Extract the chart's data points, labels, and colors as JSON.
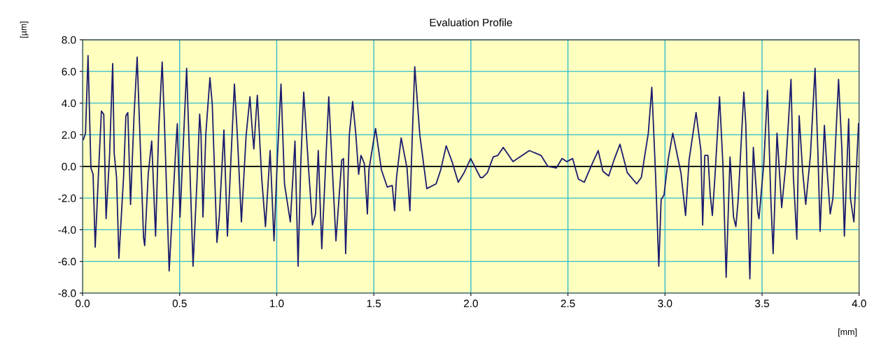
{
  "chart_data": {
    "type": "line",
    "title": "Evaluation Profile",
    "xlabel": "[mm]",
    "ylabel": "[µm]",
    "xlim": [
      0,
      4
    ],
    "ylim": [
      -8,
      8
    ],
    "xticks": [
      {
        "value": 0,
        "label": "0.0"
      },
      {
        "value": 0.5,
        "label": "0.5"
      },
      {
        "value": 1,
        "label": "1.0"
      },
      {
        "value": 1.5,
        "label": "1.5"
      },
      {
        "value": 2,
        "label": "2.0"
      },
      {
        "value": 2.5,
        "label": "2.5"
      },
      {
        "value": 3,
        "label": "3.0"
      },
      {
        "value": 3.5,
        "label": "3.5"
      },
      {
        "value": 4,
        "label": "4.0"
      }
    ],
    "yticks": [
      {
        "value": -8,
        "label": "-8.0"
      },
      {
        "value": -6,
        "label": "-6.0"
      },
      {
        "value": -4,
        "label": "-4.0"
      },
      {
        "value": -2,
        "label": "-2.0"
      },
      {
        "value": 0,
        "label": "0.0"
      },
      {
        "value": 2,
        "label": "2.0"
      },
      {
        "value": 4,
        "label": "4.0"
      },
      {
        "value": 6,
        "label": "6.0"
      },
      {
        "value": 8,
        "label": "8.0"
      }
    ],
    "grid": true,
    "marker": "none",
    "line_style": "solid",
    "ref_lines": [
      {
        "axis": "y",
        "value": 0,
        "label": null,
        "color": "#000000"
      }
    ],
    "x": [
      0.004,
      0.015,
      0.028,
      0.043,
      0.054,
      0.065,
      0.085,
      0.097,
      0.109,
      0.121,
      0.139,
      0.155,
      0.163,
      0.175,
      0.187,
      0.211,
      0.223,
      0.233,
      0.247,
      0.265,
      0.281,
      0.295,
      0.314,
      0.32,
      0.338,
      0.356,
      0.376,
      0.392,
      0.41,
      0.422,
      0.446,
      0.482,
      0.488,
      0.502,
      0.536,
      0.569,
      0.59,
      0.603,
      0.61,
      0.62,
      0.635,
      0.656,
      0.668,
      0.692,
      0.704,
      0.728,
      0.746,
      0.764,
      0.782,
      0.797,
      0.818,
      0.842,
      0.862,
      0.872,
      0.882,
      0.9,
      0.923,
      0.942,
      0.966,
      0.986,
      1.004,
      1.022,
      1.04,
      1.07,
      1.094,
      1.11,
      1.124,
      1.139,
      1.166,
      1.184,
      1.2,
      1.214,
      1.232,
      1.268,
      1.305,
      1.335,
      1.344,
      1.355,
      1.374,
      1.391,
      1.407,
      1.422,
      1.434,
      1.451,
      1.467,
      1.475,
      1.509,
      1.539,
      1.569,
      1.595,
      1.607,
      1.617,
      1.641,
      1.671,
      1.686,
      1.698,
      1.711,
      1.737,
      1.773,
      1.821,
      1.845,
      1.873,
      1.903,
      1.935,
      1.965,
      1.999,
      2.049,
      2.061,
      2.085,
      2.115,
      2.139,
      2.167,
      2.217,
      2.301,
      2.361,
      2.397,
      2.44,
      2.47,
      2.494,
      2.524,
      2.554,
      2.584,
      2.626,
      2.656,
      2.68,
      2.71,
      2.74,
      2.768,
      2.806,
      2.854,
      2.878,
      2.914,
      2.932,
      2.952,
      2.968,
      2.98,
      2.995,
      3.016,
      3.04,
      3.082,
      3.106,
      3.124,
      3.16,
      3.185,
      3.194,
      3.205,
      3.221,
      3.233,
      3.244,
      3.258,
      3.281,
      3.298,
      3.315,
      3.335,
      3.353,
      3.365,
      3.377,
      3.406,
      3.416,
      3.437,
      3.455,
      3.478,
      3.484,
      3.509,
      3.528,
      3.545,
      3.557,
      3.577,
      3.601,
      3.623,
      3.649,
      3.661,
      3.679,
      3.691,
      3.709,
      3.725,
      3.749,
      3.773,
      3.788,
      3.799,
      3.821,
      3.833,
      3.851,
      3.865,
      3.894,
      3.911,
      3.924,
      3.931,
      3.946,
      3.955,
      3.973,
      3.997
    ],
    "series": [
      {
        "color": "#1c1c6e",
        "values": [
          1.7,
          2.1,
          7.0,
          -0.1,
          -0.5,
          -5.1,
          0.4,
          3.5,
          3.3,
          -3.3,
          0.7,
          6.5,
          0.8,
          -0.7,
          -5.8,
          -0.7,
          3.2,
          3.4,
          -2.4,
          3.2,
          6.9,
          2.1,
          -4.5,
          -5.0,
          -0.5,
          1.6,
          -4.4,
          2.3,
          6.6,
          2.6,
          -6.6,
          1.6,
          2.7,
          -3.2,
          6.2,
          -6.3,
          -0.7,
          3.3,
          2.0,
          -3.2,
          2.1,
          5.6,
          3.9,
          -4.8,
          -3.2,
          2.3,
          -4.4,
          0.4,
          5.2,
          2.0,
          -3.5,
          1.9,
          4.4,
          2.6,
          1.1,
          4.5,
          -0.8,
          -3.8,
          1.0,
          -4.7,
          0.7,
          5.2,
          -1.1,
          -3.5,
          1.6,
          -6.3,
          0.2,
          4.7,
          -0.5,
          -3.7,
          -3.0,
          1.0,
          -5.2,
          4.4,
          -4.7,
          0.4,
          0.5,
          -5.5,
          2.0,
          4.1,
          2.1,
          -0.5,
          0.7,
          0.2,
          -3.0,
          -0.2,
          2.4,
          -0.2,
          -1.3,
          -1.2,
          -2.8,
          -0.7,
          1.8,
          -0.1,
          -2.8,
          1.8,
          6.3,
          2.0,
          -1.4,
          -1.1,
          -0.2,
          1.3,
          0.3,
          -1.0,
          -0.4,
          0.5,
          -0.7,
          -0.7,
          -0.4,
          0.6,
          0.7,
          1.2,
          0.3,
          1.0,
          0.7,
          0.0,
          -0.1,
          0.5,
          0.3,
          0.5,
          -0.8,
          -1.0,
          0.2,
          1.0,
          -0.3,
          -0.6,
          0.5,
          1.4,
          -0.4,
          -1.1,
          -0.7,
          2.1,
          5.0,
          -0.7,
          -6.3,
          -2.1,
          -1.8,
          0.4,
          2.1,
          -0.4,
          -3.1,
          0.4,
          3.4,
          1.0,
          -3.7,
          0.7,
          0.7,
          -1.8,
          -3.1,
          -0.5,
          4.4,
          0.2,
          -7.0,
          0.6,
          -3.2,
          -3.8,
          -2.1,
          4.7,
          2.7,
          -7.1,
          1.2,
          -2.9,
          -3.3,
          0.2,
          4.8,
          -2.0,
          -5.5,
          2.1,
          -2.6,
          0.2,
          5.5,
          -0.6,
          -4.6,
          3.2,
          -0.3,
          -2.4,
          0.7,
          6.2,
          0.7,
          -4.1,
          2.6,
          0.1,
          -3.0,
          -2.0,
          5.5,
          1.1,
          -4.4,
          -2.0,
          3.0,
          -2.0,
          -3.5,
          2.7
        ]
      }
    ]
  }
}
